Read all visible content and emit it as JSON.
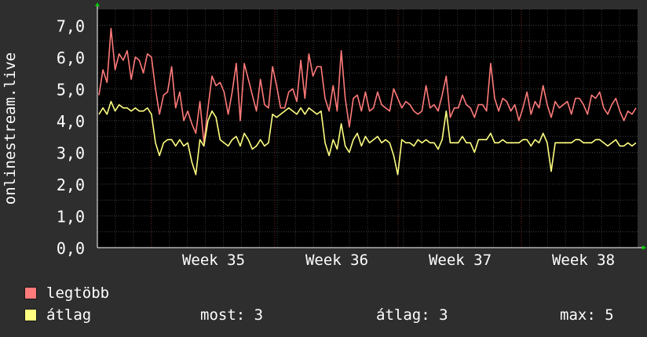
{
  "chart_data": {
    "type": "line",
    "ylabel": "onlinestream.live",
    "ylim": [
      0,
      7.5
    ],
    "y_ticks": [
      "0,0",
      "1,0",
      "2,0",
      "3,0",
      "4,0",
      "5,0",
      "6,0",
      "7,0"
    ],
    "x_ticks": [
      "Week 35",
      "Week 36",
      "Week 37",
      "Week 38"
    ],
    "grid": true,
    "colors": {
      "background": "#2e2e2e",
      "plot": "#000000",
      "grid": "#444444",
      "axis": "#ffffff"
    },
    "series": [
      {
        "name": "legtöbb",
        "color": "#ff7a7a",
        "values": [
          4.8,
          5.6,
          5.2,
          6.9,
          5.6,
          6.1,
          5.9,
          6.2,
          5.3,
          6.0,
          5.9,
          5.5,
          6.1,
          6.0,
          5.0,
          4.2,
          4.8,
          4.9,
          5.7,
          4.4,
          4.9,
          4.0,
          4.3,
          3.9,
          3.6,
          4.6,
          3.3,
          4.4,
          5.4,
          5.1,
          5.2,
          4.9,
          4.2,
          4.9,
          5.8,
          4.0,
          5.8,
          5.3,
          4.8,
          4.3,
          5.3,
          4.5,
          4.4,
          5.7,
          5.1,
          4.4,
          4.4,
          4.9,
          5.0,
          4.6,
          5.9,
          4.7,
          6.1,
          5.4,
          5.7,
          5.7,
          4.7,
          4.3,
          5.1,
          4.3,
          6.2,
          4.7,
          3.8,
          4.7,
          4.8,
          4.3,
          4.9,
          4.3,
          4.4,
          4.9,
          4.5,
          4.4,
          4.3,
          5.0,
          4.7,
          4.4,
          4.6,
          4.5,
          4.3,
          4.2,
          4.3,
          5.1,
          4.4,
          4.5,
          4.3,
          4.8,
          5.4,
          4.1,
          4.4,
          4.4,
          4.8,
          4.5,
          4.4,
          4.1,
          4.5,
          4.5,
          4.3,
          5.8,
          4.7,
          4.3,
          4.7,
          4.6,
          4.3,
          4.5,
          4.0,
          4.4,
          4.9,
          4.2,
          4.6,
          4.4,
          5.1,
          4.5,
          4.1,
          4.6,
          4.4,
          4.5,
          4.6,
          4.2,
          4.7,
          4.7,
          4.5,
          4.2,
          4.8,
          4.7,
          4.9,
          4.4,
          4.2,
          4.5,
          4.7,
          4.3,
          4.0,
          4.3,
          4.2,
          4.4
        ]
      },
      {
        "name": "átlag",
        "color": "#ffff80",
        "values": [
          4.2,
          4.4,
          4.2,
          4.6,
          4.3,
          4.5,
          4.4,
          4.4,
          4.3,
          4.4,
          4.3,
          4.3,
          4.4,
          4.2,
          3.3,
          2.9,
          3.3,
          3.4,
          3.4,
          3.2,
          3.4,
          3.2,
          3.3,
          2.7,
          2.3,
          3.4,
          3.2,
          4.0,
          4.3,
          4.1,
          3.4,
          3.3,
          3.2,
          3.4,
          3.5,
          3.2,
          3.6,
          3.4,
          3.1,
          3.2,
          3.4,
          3.2,
          3.3,
          4.2,
          4.1,
          4.2,
          4.3,
          4.4,
          4.3,
          4.2,
          4.4,
          4.2,
          4.4,
          4.3,
          4.2,
          4.3,
          3.3,
          2.9,
          3.4,
          3.1,
          3.9,
          3.2,
          3.0,
          3.4,
          3.6,
          3.2,
          3.5,
          3.3,
          3.4,
          3.5,
          3.3,
          3.4,
          3.3,
          2.9,
          2.3,
          3.4,
          3.3,
          3.3,
          3.2,
          3.4,
          3.3,
          3.4,
          3.3,
          3.3,
          3.1,
          3.4,
          4.3,
          3.3,
          3.3,
          3.3,
          3.5,
          3.3,
          3.3,
          3.0,
          3.4,
          3.4,
          3.4,
          3.6,
          3.3,
          3.3,
          3.4,
          3.3,
          3.3,
          3.3,
          3.3,
          3.4,
          3.4,
          3.2,
          3.4,
          3.3,
          3.6,
          3.3,
          2.4,
          3.3,
          3.3,
          3.3,
          3.3,
          3.3,
          3.4,
          3.4,
          3.3,
          3.3,
          3.3,
          3.4,
          3.4,
          3.3,
          3.2,
          3.3,
          3.4,
          3.2,
          3.2,
          3.3,
          3.2,
          3.3
        ]
      }
    ]
  },
  "legend": {
    "max_label": "legtöbb",
    "avg_label": "átlag",
    "stat_now": "most: 3",
    "stat_avg": "átlag: 3",
    "stat_max": "max: 5"
  }
}
